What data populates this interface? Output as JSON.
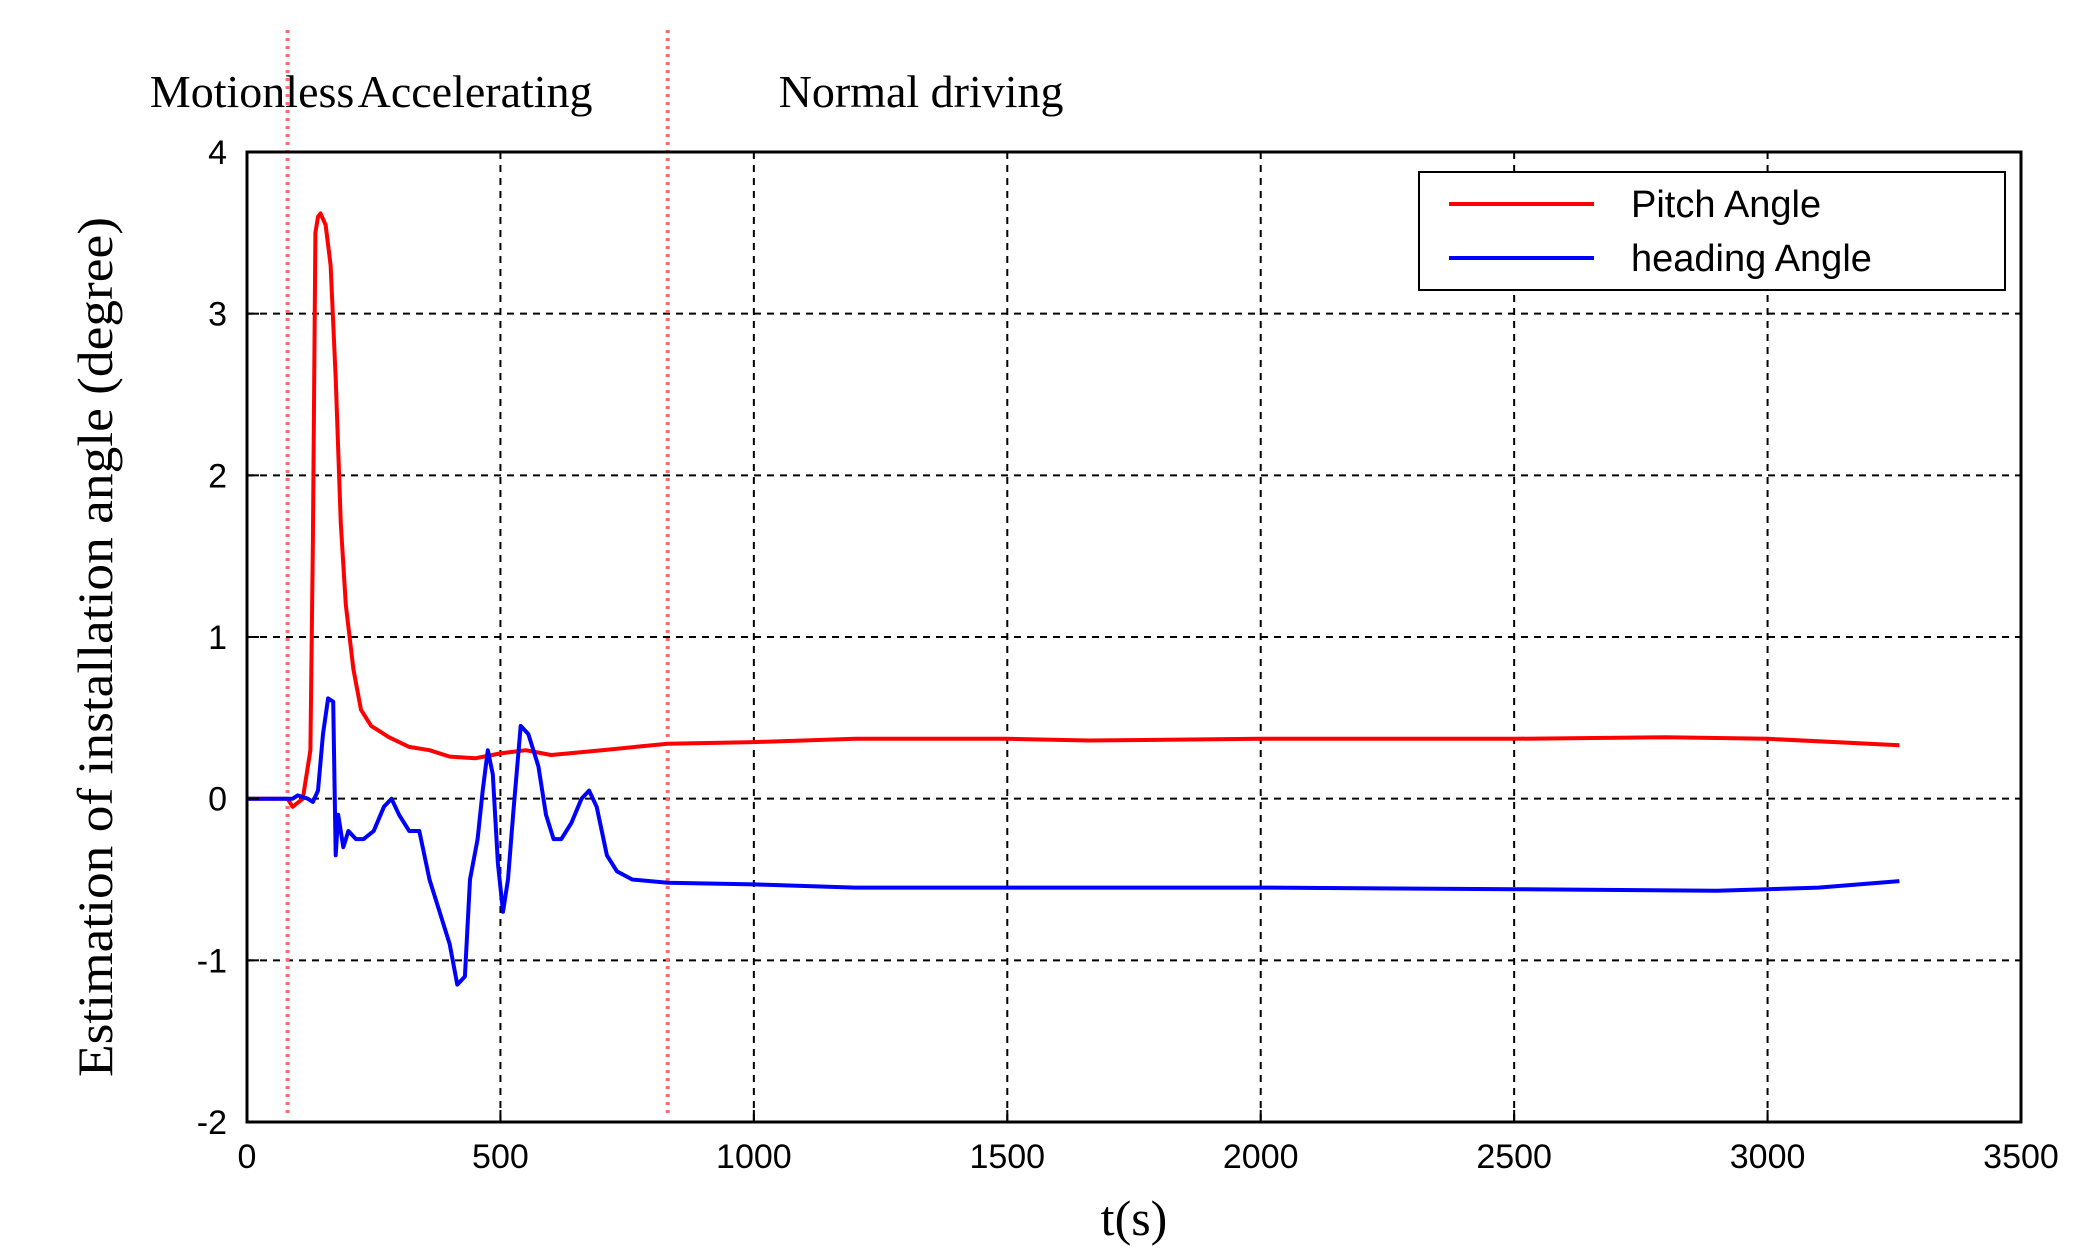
{
  "chart_data": {
    "type": "line",
    "title": "",
    "xlabel": "t(s)",
    "ylabel": "Estimation of installation angle (degree)",
    "xlim": [
      0,
      3500
    ],
    "ylim": [
      -2,
      4
    ],
    "xticks": [
      0,
      500,
      1000,
      1500,
      2000,
      2500,
      3000,
      3500
    ],
    "yticks": [
      -2,
      -1,
      0,
      1,
      2,
      3,
      4
    ],
    "grid": true,
    "legend_position": "top-right",
    "phase_boundaries": [
      80,
      830
    ],
    "phase_labels": [
      {
        "label": "Motionless",
        "x": 10
      },
      {
        "label": "Accelerating",
        "x": 450
      },
      {
        "label": "Normal driving",
        "x": 1330
      }
    ],
    "series": [
      {
        "name": "Pitch Angle",
        "color": "#ff0000",
        "points": [
          [
            0,
            0
          ],
          [
            80,
            0
          ],
          [
            90,
            -0.05
          ],
          [
            110,
            0
          ],
          [
            125,
            0.3
          ],
          [
            130,
            1.6
          ],
          [
            135,
            3.5
          ],
          [
            140,
            3.6
          ],
          [
            145,
            3.62
          ],
          [
            155,
            3.55
          ],
          [
            165,
            3.3
          ],
          [
            175,
            2.6
          ],
          [
            185,
            1.7
          ],
          [
            195,
            1.2
          ],
          [
            210,
            0.8
          ],
          [
            225,
            0.55
          ],
          [
            245,
            0.45
          ],
          [
            280,
            0.38
          ],
          [
            320,
            0.32
          ],
          [
            360,
            0.3
          ],
          [
            400,
            0.26
          ],
          [
            450,
            0.25
          ],
          [
            500,
            0.28
          ],
          [
            550,
            0.3
          ],
          [
            600,
            0.27
          ],
          [
            700,
            0.3
          ],
          [
            830,
            0.34
          ],
          [
            1000,
            0.35
          ],
          [
            1200,
            0.37
          ],
          [
            1500,
            0.37
          ],
          [
            1660,
            0.36
          ],
          [
            2000,
            0.37
          ],
          [
            2500,
            0.37
          ],
          [
            2800,
            0.38
          ],
          [
            3000,
            0.37
          ],
          [
            3260,
            0.33
          ]
        ]
      },
      {
        "name": "heading Angle",
        "color": "#0000ff",
        "points": [
          [
            0,
            0
          ],
          [
            90,
            0
          ],
          [
            100,
            0.02
          ],
          [
            120,
            0
          ],
          [
            130,
            -0.02
          ],
          [
            140,
            0.05
          ],
          [
            150,
            0.4
          ],
          [
            160,
            0.62
          ],
          [
            170,
            0.6
          ],
          [
            175,
            -0.35
          ],
          [
            180,
            -0.1
          ],
          [
            190,
            -0.3
          ],
          [
            200,
            -0.2
          ],
          [
            215,
            -0.25
          ],
          [
            230,
            -0.25
          ],
          [
            250,
            -0.2
          ],
          [
            270,
            -0.05
          ],
          [
            285,
            0.0
          ],
          [
            300,
            -0.1
          ],
          [
            320,
            -0.2
          ],
          [
            340,
            -0.2
          ],
          [
            360,
            -0.5
          ],
          [
            380,
            -0.7
          ],
          [
            400,
            -0.9
          ],
          [
            415,
            -1.15
          ],
          [
            430,
            -1.1
          ],
          [
            440,
            -0.5
          ],
          [
            455,
            -0.25
          ],
          [
            465,
            0.05
          ],
          [
            475,
            0.3
          ],
          [
            485,
            0.15
          ],
          [
            495,
            -0.4
          ],
          [
            505,
            -0.7
          ],
          [
            515,
            -0.5
          ],
          [
            525,
            -0.1
          ],
          [
            540,
            0.45
          ],
          [
            555,
            0.4
          ],
          [
            565,
            0.3
          ],
          [
            575,
            0.2
          ],
          [
            590,
            -0.1
          ],
          [
            605,
            -0.25
          ],
          [
            620,
            -0.25
          ],
          [
            640,
            -0.15
          ],
          [
            660,
            0.0
          ],
          [
            675,
            0.05
          ],
          [
            690,
            -0.05
          ],
          [
            710,
            -0.35
          ],
          [
            730,
            -0.45
          ],
          [
            760,
            -0.5
          ],
          [
            830,
            -0.52
          ],
          [
            1000,
            -0.53
          ],
          [
            1200,
            -0.55
          ],
          [
            1500,
            -0.55
          ],
          [
            2000,
            -0.55
          ],
          [
            2500,
            -0.56
          ],
          [
            2900,
            -0.57
          ],
          [
            3100,
            -0.55
          ],
          [
            3260,
            -0.51
          ]
        ]
      }
    ]
  }
}
